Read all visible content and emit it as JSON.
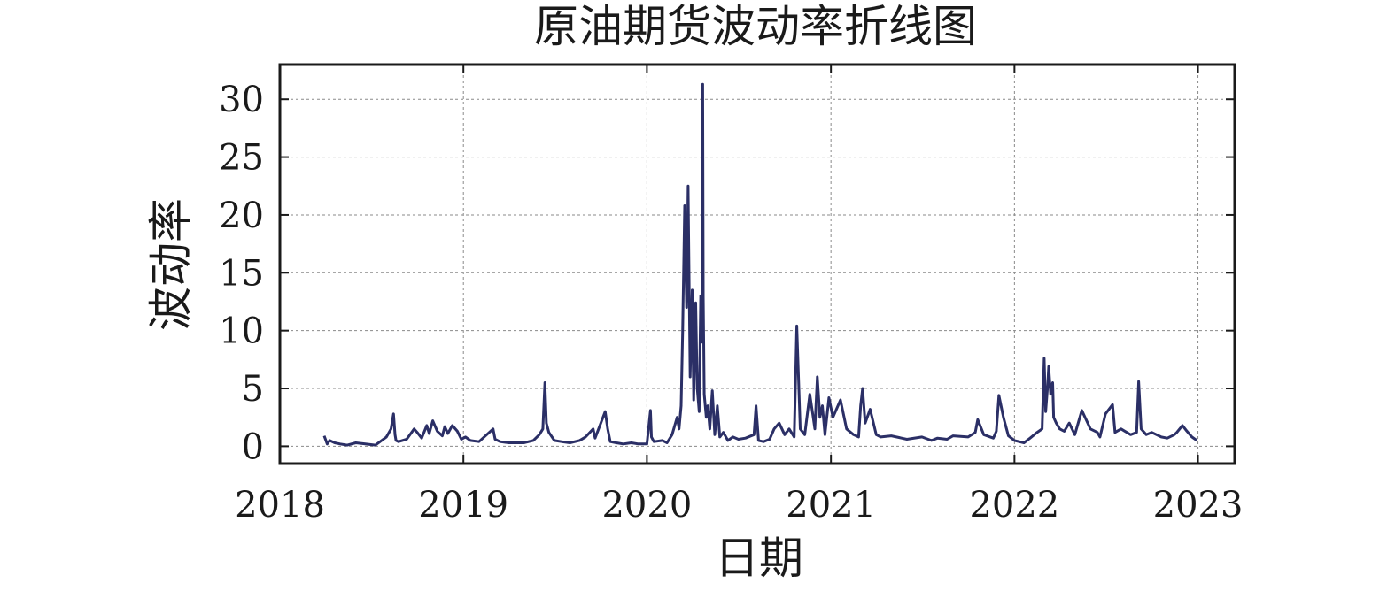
{
  "chart_data": {
    "type": "line",
    "title": "原油期货波动率折线图",
    "xlabel": "日期",
    "ylabel": "波动率",
    "xlim": [
      "2018-01-01",
      "2023-03-15"
    ],
    "ylim": [
      -1.5,
      33
    ],
    "x_ticks": [
      "2018",
      "2019",
      "2020",
      "2021",
      "2022",
      "2023"
    ],
    "y_ticks": [
      0,
      5,
      10,
      15,
      20,
      25,
      30
    ],
    "grid": true,
    "series_color": "#2b2f66",
    "series": [
      {
        "x": [
          "2018-03-30",
          "2018-04-05",
          "2018-04-10",
          "2018-04-20",
          "2018-05-01",
          "2018-05-15",
          "2018-06-01",
          "2018-06-20",
          "2018-07-10",
          "2018-08-01",
          "2018-08-10",
          "2018-08-15",
          "2018-08-18",
          "2018-08-20",
          "2018-08-25",
          "2018-09-10",
          "2018-09-25",
          "2018-10-01",
          "2018-10-10",
          "2018-10-20",
          "2018-10-25",
          "2018-11-01",
          "2018-11-10",
          "2018-11-20",
          "2018-11-25",
          "2018-12-01",
          "2018-12-10",
          "2018-12-20",
          "2018-12-28",
          "2019-01-05",
          "2019-01-15",
          "2019-02-01",
          "2019-03-01",
          "2019-03-05",
          "2019-03-15",
          "2019-04-01",
          "2019-05-01",
          "2019-05-20",
          "2019-06-01",
          "2019-06-08",
          "2019-06-12",
          "2019-06-15",
          "2019-06-20",
          "2019-07-01",
          "2019-07-15",
          "2019-08-01",
          "2019-08-20",
          "2019-09-01",
          "2019-09-16",
          "2019-09-20",
          "2019-10-10",
          "2019-10-15",
          "2019-10-20",
          "2019-11-01",
          "2019-11-15",
          "2019-12-01",
          "2019-12-15",
          "2020-01-01",
          "2020-01-08",
          "2020-01-10",
          "2020-01-15",
          "2020-02-01",
          "2020-02-10",
          "2020-02-20",
          "2020-03-01",
          "2020-03-05",
          "2020-03-09",
          "2020-03-12",
          "2020-03-16",
          "2020-03-20",
          "2020-03-23",
          "2020-03-27",
          "2020-03-31",
          "2020-04-03",
          "2020-04-07",
          "2020-04-10",
          "2020-04-14",
          "2020-04-17",
          "2020-04-20",
          "2020-04-21",
          "2020-04-22",
          "2020-04-24",
          "2020-04-28",
          "2020-05-01",
          "2020-05-05",
          "2020-05-10",
          "2020-05-15",
          "2020-05-20",
          "2020-05-25",
          "2020-06-01",
          "2020-06-10",
          "2020-06-20",
          "2020-07-01",
          "2020-07-15",
          "2020-08-01",
          "2020-08-05",
          "2020-08-10",
          "2020-08-20",
          "2020-09-01",
          "2020-09-10",
          "2020-09-20",
          "2020-10-01",
          "2020-10-10",
          "2020-10-20",
          "2020-10-25",
          "2020-11-01",
          "2020-11-10",
          "2020-11-20",
          "2020-11-25",
          "2020-11-30",
          "2020-12-05",
          "2020-12-10",
          "2020-12-15",
          "2020-12-20",
          "2020-12-28",
          "2021-01-05",
          "2021-01-20",
          "2021-02-01",
          "2021-02-15",
          "2021-02-25",
          "2021-03-01",
          "2021-03-05",
          "2021-03-10",
          "2021-03-20",
          "2021-04-01",
          "2021-04-10",
          "2021-05-01",
          "2021-06-01",
          "2021-07-01",
          "2021-07-20",
          "2021-08-01",
          "2021-08-20",
          "2021-09-01",
          "2021-10-01",
          "2021-10-15",
          "2021-10-20",
          "2021-11-01",
          "2021-11-20",
          "2021-11-26",
          "2021-12-01",
          "2021-12-10",
          "2021-12-20",
          "2022-01-01",
          "2022-01-20",
          "2022-02-01",
          "2022-02-15",
          "2022-02-25",
          "2022-03-01",
          "2022-03-04",
          "2022-03-08",
          "2022-03-10",
          "2022-03-14",
          "2022-03-18",
          "2022-03-20",
          "2022-03-25",
          "2022-04-01",
          "2022-04-10",
          "2022-04-20",
          "2022-05-01",
          "2022-05-15",
          "2022-06-01",
          "2022-06-15",
          "2022-06-20",
          "2022-07-01",
          "2022-07-15",
          "2022-07-20",
          "2022-08-01",
          "2022-08-20",
          "2022-09-01",
          "2022-09-05",
          "2022-09-10",
          "2022-09-20",
          "2022-10-01",
          "2022-10-20",
          "2022-11-01",
          "2022-11-15",
          "2022-11-20",
          "2022-12-01",
          "2022-12-10",
          "2022-12-20",
          "2022-12-30"
        ],
        "values": [
          0.9,
          0.2,
          0.5,
          0.3,
          0.2,
          0.1,
          0.3,
          0.2,
          0.1,
          0.8,
          1.5,
          2.8,
          1.0,
          0.5,
          0.4,
          0.6,
          1.5,
          1.2,
          0.7,
          1.8,
          1.1,
          2.2,
          1.3,
          0.9,
          1.7,
          1.1,
          1.8,
          1.3,
          0.6,
          0.8,
          0.5,
          0.4,
          1.5,
          0.6,
          0.4,
          0.3,
          0.3,
          0.5,
          1.0,
          1.5,
          5.5,
          2.0,
          1.2,
          0.5,
          0.4,
          0.3,
          0.5,
          0.8,
          1.5,
          0.7,
          3.0,
          1.5,
          0.4,
          0.3,
          0.2,
          0.3,
          0.2,
          0.2,
          3.1,
          0.8,
          0.4,
          0.5,
          0.3,
          1.0,
          2.5,
          1.5,
          3.5,
          9.8,
          20.8,
          12.0,
          22.5,
          6.0,
          13.5,
          4.0,
          12.4,
          5.0,
          3.0,
          13.0,
          9.0,
          31.3,
          13.0,
          4.5,
          2.5,
          3.5,
          1.5,
          4.8,
          1.0,
          3.5,
          0.8,
          1.2,
          0.5,
          0.8,
          0.6,
          0.7,
          1.0,
          3.5,
          0.5,
          0.4,
          0.6,
          1.5,
          2.0,
          1.0,
          1.5,
          0.8,
          10.4,
          1.5,
          1.0,
          4.5,
          3.0,
          1.5,
          6.0,
          2.5,
          3.5,
          1.0,
          4.2,
          2.5,
          4.0,
          1.5,
          1.0,
          0.8,
          3.5,
          5.0,
          2.0,
          3.2,
          1.0,
          0.8,
          0.9,
          0.6,
          0.8,
          0.5,
          0.7,
          0.6,
          0.9,
          0.8,
          1.2,
          2.3,
          1.0,
          0.7,
          1.3,
          4.4,
          2.5,
          0.9,
          0.5,
          0.3,
          0.7,
          1.2,
          1.5,
          7.6,
          3.0,
          5.2,
          6.9,
          4.5,
          5.5,
          2.5,
          2.0,
          1.5,
          1.3,
          2.0,
          1.0,
          3.1,
          1.5,
          1.2,
          0.8,
          2.8,
          3.6,
          1.2,
          1.5,
          1.0,
          1.2,
          5.6,
          1.5,
          1.0,
          1.2,
          0.8,
          0.7,
          1.0,
          1.2,
          1.8,
          1.3,
          0.8,
          0.5
        ]
      }
    ]
  }
}
